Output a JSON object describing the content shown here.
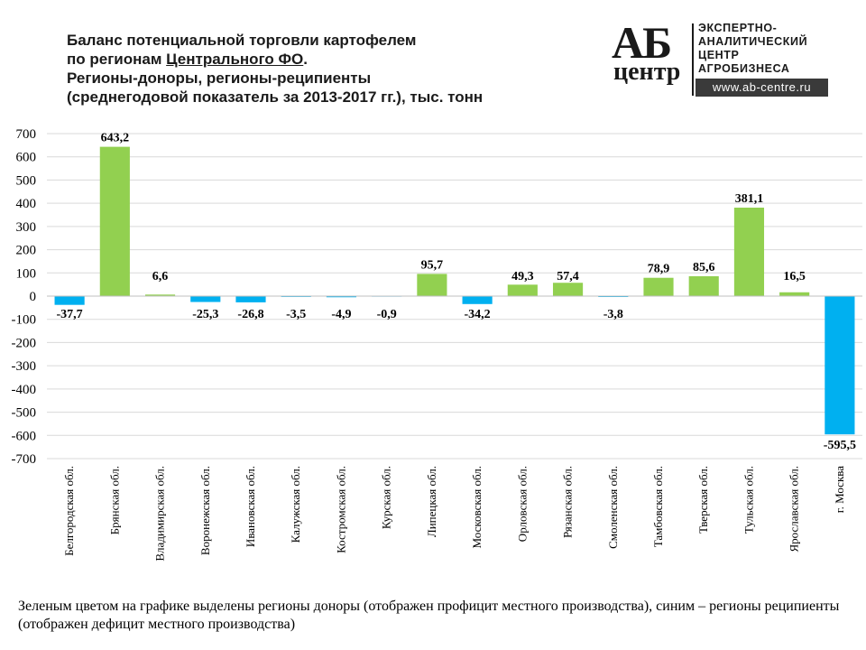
{
  "title": {
    "line1": "Баланс потенциальной торговли картофелем",
    "line2_prefix": "по регионам ",
    "line2_underlined": "Центрального ФО",
    "line2_suffix": ".",
    "line3": "Регионы-доноры, регионы-реципиенты",
    "line4": "(среднегодовой показатель за 2013-2017 гг.), тыс. тонн"
  },
  "logo": {
    "mark_top": "АБ",
    "mark_bottom": "центр",
    "desc": [
      "ЭКСПЕРТНО-",
      "АНАЛИТИЧЕСКИЙ",
      "ЦЕНТР",
      "АГРОБИЗНЕСА"
    ],
    "site": "www.ab-centre.ru"
  },
  "note": "Зеленым цветом на графике выделены регионы доноры (отображен профицит местного производства), синим – регионы реципиенты (отображен дефицит местного производства)",
  "colors": {
    "donor": "#92d050",
    "recipient": "#00b0f0",
    "grid": "#d9d9d9",
    "zero_line": "#bfbfbf"
  },
  "chart_data": {
    "type": "bar",
    "title": "Баланс потенциальной торговли картофелем по регионам Центрального ФО. Регионы-доноры, регионы-реципиенты (среднегодовой показатель за 2013-2017 гг.), тыс. тонн",
    "categories": [
      "Белгородская обл.",
      "Брянская обл.",
      "Владимирская обл.",
      "Воронежская обл.",
      "Ивановская обл.",
      "Калужская обл.",
      "Костромская обл.",
      "Курская обл.",
      "Липецкая обл.",
      "Московская обл.",
      "Орловская обл.",
      "Рязанская обл.",
      "Смоленская обл.",
      "Тамбовская обл.",
      "Тверская обл.",
      "Тульская  обл.",
      "Ярославская обл.",
      "г. Москва"
    ],
    "values": [
      -37.7,
      643.2,
      6.6,
      -25.3,
      -26.8,
      -3.5,
      -4.9,
      -0.9,
      95.7,
      -34.2,
      49.3,
      57.4,
      -3.8,
      78.9,
      85.6,
      381.1,
      16.5,
      -595.5
    ],
    "labels": [
      "-37,7",
      "643,2",
      "6,6",
      "-25,3",
      "-26,8",
      "-3,5",
      "-4,9",
      "-0,9",
      "95,7",
      "-34,2",
      "49,3",
      "57,4",
      "-3,8",
      "78,9",
      "85,6",
      "381,1",
      "16,5",
      "-595,5"
    ],
    "ylim": [
      -700,
      700
    ],
    "yticks": [
      700,
      600,
      500,
      400,
      300,
      200,
      100,
      0,
      -100,
      -200,
      -300,
      -400,
      -500,
      -600,
      -700
    ],
    "grid": true,
    "xlabel": "",
    "ylabel": ""
  }
}
